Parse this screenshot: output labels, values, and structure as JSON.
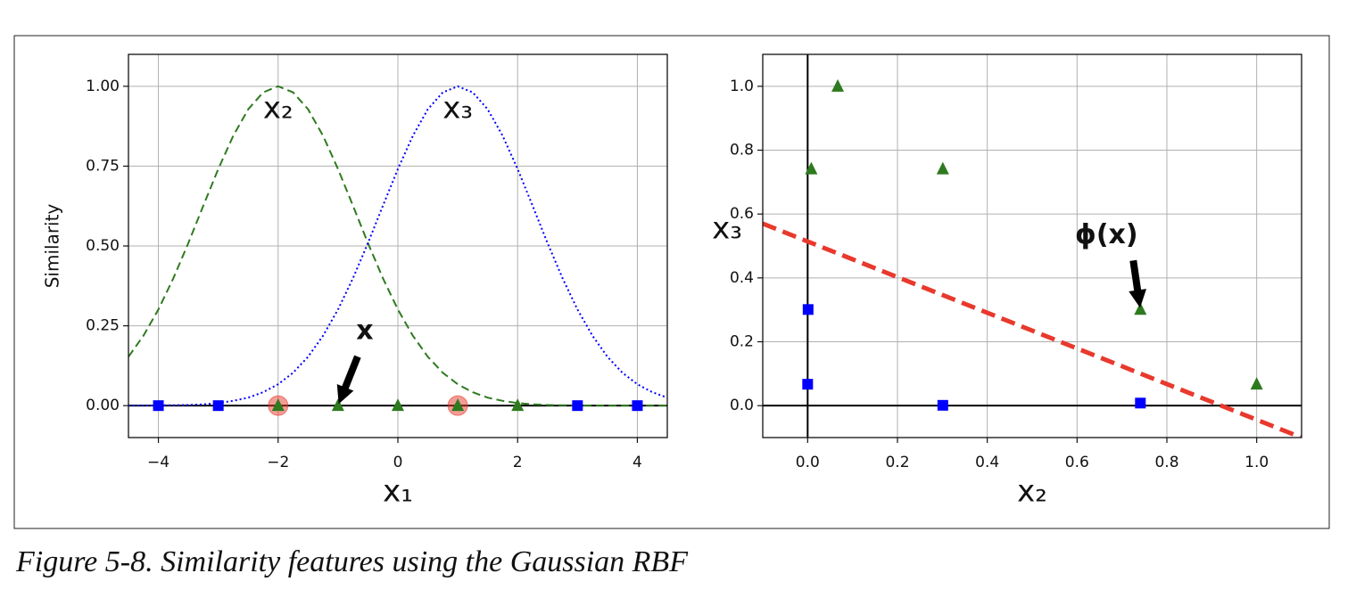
{
  "caption": "Figure 5-8. Similarity features using the Gaussian RBF",
  "chart_data": [
    {
      "type": "line",
      "xlabel": "x₁",
      "ylabel": "Similarity",
      "xlim": [
        -4.5,
        4.5
      ],
      "ylim": [
        -0.1,
        1.1
      ],
      "xticks": [
        {
          "value": -4,
          "label": "−4"
        },
        {
          "value": -2,
          "label": "−2"
        },
        0,
        2,
        4
      ],
      "yticks": [
        {
          "value": 0,
          "label": "0.00"
        },
        {
          "value": 0.25,
          "label": "0.25"
        },
        {
          "value": 0.5,
          "label": "0.50"
        },
        {
          "value": 0.75,
          "label": "0.75"
        },
        {
          "value": 1,
          "label": "1.00"
        }
      ],
      "grid": true,
      "x": [
        -4.5,
        -4.25,
        -4,
        -3.75,
        -3.5,
        -3.25,
        -3,
        -2.75,
        -2.5,
        -2.25,
        -2,
        -1.75,
        -1.5,
        -1.25,
        -1,
        -0.75,
        -0.5,
        -0.25,
        0,
        0.25,
        0.5,
        0.75,
        1,
        1.25,
        1.5,
        1.75,
        2,
        2.25,
        2.5,
        2.75,
        3,
        3.25,
        3.5,
        3.75,
        4,
        4.25,
        4.5
      ],
      "series": [
        {
          "name": "x₂",
          "color": "#2e7a1f",
          "style": "dashed",
          "values": [
            0.153,
            0.219,
            0.301,
            0.399,
            0.509,
            0.626,
            0.741,
            0.845,
            0.928,
            0.981,
            1,
            0.981,
            0.928,
            0.845,
            0.741,
            0.626,
            0.509,
            0.399,
            0.301,
            0.219,
            0.153,
            0.103,
            0.067,
            0.042,
            0.025,
            0.015,
            0.008,
            0.004,
            0.002,
            0.001,
            0.001,
            0,
            0,
            0,
            0,
            0,
            0
          ]
        },
        {
          "name": "x₃",
          "color": "#0000ff",
          "style": "dotted",
          "values": [
            0,
            0,
            0.001,
            0.001,
            0.002,
            0.004,
            0.008,
            0.015,
            0.025,
            0.042,
            0.067,
            0.103,
            0.153,
            0.219,
            0.301,
            0.399,
            0.509,
            0.626,
            0.741,
            0.845,
            0.928,
            0.981,
            1,
            0.981,
            0.928,
            0.845,
            0.741,
            0.626,
            0.509,
            0.399,
            0.301,
            0.219,
            0.153,
            0.103,
            0.067,
            0.042,
            0.025
          ]
        }
      ],
      "points": [
        {
          "marker": "circle",
          "color": "#e8392c",
          "x": [
            -2,
            1
          ],
          "values": [
            0,
            0
          ]
        },
        {
          "marker": "square",
          "color": "#0000ff",
          "x": [
            -4,
            -3,
            3,
            4
          ],
          "values": [
            0,
            0,
            0,
            0
          ]
        },
        {
          "marker": "triangle",
          "color": "#2e7a1f",
          "x": [
            -2,
            -1,
            0,
            1,
            2
          ],
          "values": [
            0,
            0,
            0,
            0,
            0
          ]
        }
      ],
      "annotations": [
        {
          "text": "x",
          "point": 2,
          "index": 1
        }
      ]
    },
    {
      "type": "scatter",
      "xlabel": "x₂",
      "ylabel": "x₃",
      "xlim": [
        -0.1,
        1.1
      ],
      "ylim": [
        -0.1,
        1.1
      ],
      "xticks": [
        {
          "value": 0,
          "label": "0.0"
        },
        0.2,
        0.4,
        0.6,
        0.8,
        {
          "value": 1,
          "label": "1.0"
        }
      ],
      "yticks": [
        {
          "value": 0,
          "label": "0.0"
        },
        0.2,
        0.4,
        0.6,
        0.8,
        {
          "value": 1,
          "label": "1.0"
        }
      ],
      "grid": true,
      "points": [
        {
          "marker": "square",
          "color": "#0000ff",
          "x": [
            0.301,
            0.741,
            0.001,
            0
          ],
          "values": [
            0.001,
            0.008,
            0.301,
            0.067
          ]
        },
        {
          "marker": "triangle",
          "color": "#2e7a1f",
          "x": [
            1,
            0.741,
            0.301,
            0.067,
            0.008
          ],
          "values": [
            0.067,
            0.301,
            0.741,
            1,
            0.741
          ]
        }
      ],
      "lines": [
        {
          "color": "#e8392c",
          "style": "dashed",
          "x": [
            -0.1,
            1.1
          ],
          "values": [
            0.57,
            -0.1
          ]
        }
      ],
      "annotations": [
        {
          "text": "ϕ(x)",
          "point": 1,
          "index": 1
        }
      ]
    }
  ]
}
